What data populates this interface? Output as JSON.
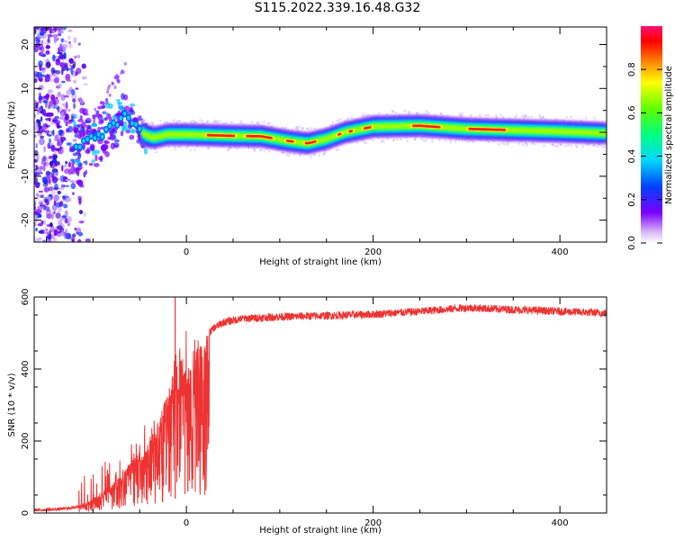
{
  "title": "S115.2022.339.16.48.G32",
  "chart_data": [
    {
      "type": "heatmap",
      "xlabel": "Height of straight line (km)",
      "ylabel": "Frequency (Hz)",
      "xlim": [
        -163,
        450
      ],
      "ylim": [
        -25,
        24
      ],
      "x_ticks": [
        0,
        200,
        400
      ],
      "y_ticks": [
        -20,
        -10,
        0,
        10,
        20
      ],
      "colorbar": {
        "label": "Normalized spectral amplitude",
        "range": [
          0,
          1
        ],
        "ticks": [
          "0.0",
          "0.2",
          "0.4",
          "0.6",
          "0.8"
        ]
      },
      "ridge_center": [
        [
          -125,
          -4.5
        ],
        [
          -110,
          -2
        ],
        [
          -95,
          -1
        ],
        [
          -80,
          1
        ],
        [
          -65,
          4
        ],
        [
          -55,
          2
        ],
        [
          -45,
          -0.5
        ],
        [
          -35,
          -1.2
        ],
        [
          -20,
          -0.5
        ],
        [
          0,
          -0.5
        ],
        [
          50,
          -0.8
        ],
        [
          80,
          -0.9
        ],
        [
          110,
          -2
        ],
        [
          130,
          -2.5
        ],
        [
          150,
          -1.5
        ],
        [
          170,
          0
        ],
        [
          200,
          1.3
        ],
        [
          250,
          1.5
        ],
        [
          300,
          0.8
        ],
        [
          350,
          0.5
        ],
        [
          400,
          0.2
        ],
        [
          450,
          -0.2
        ]
      ]
    },
    {
      "type": "line",
      "xlabel": "Height of straight line (km)",
      "ylabel": "SNR (10 * v/v)",
      "xlim": [
        -163,
        450
      ],
      "ylim": [
        0,
        600
      ],
      "x_ticks": [
        0,
        200,
        400
      ],
      "y_ticks": [
        0,
        200,
        400,
        600
      ],
      "series": [
        {
          "color": "#ee3333",
          "envelope": [
            [
              -163,
              8
            ],
            [
              -140,
              10
            ],
            [
              -120,
              15
            ],
            [
              -110,
              25
            ],
            [
              -100,
              40
            ],
            [
              -90,
              60
            ],
            [
              -80,
              80
            ],
            [
              -70,
              110
            ],
            [
              -60,
              140
            ],
            [
              -50,
              170
            ],
            [
              -40,
              210
            ],
            [
              -30,
              260
            ],
            [
              -22,
              320
            ],
            [
              -15,
              390
            ],
            [
              -8,
              420
            ],
            [
              0,
              440
            ],
            [
              10,
              460
            ],
            [
              20,
              490
            ],
            [
              30,
              515
            ],
            [
              40,
              530
            ],
            [
              60,
              540
            ],
            [
              100,
              545
            ],
            [
              150,
              548
            ],
            [
              200,
              552
            ],
            [
              250,
              560
            ],
            [
              300,
              570
            ],
            [
              350,
              565
            ],
            [
              400,
              560
            ],
            [
              450,
              555
            ]
          ],
          "spike_x": -12,
          "spike_y": 600
        }
      ]
    }
  ]
}
